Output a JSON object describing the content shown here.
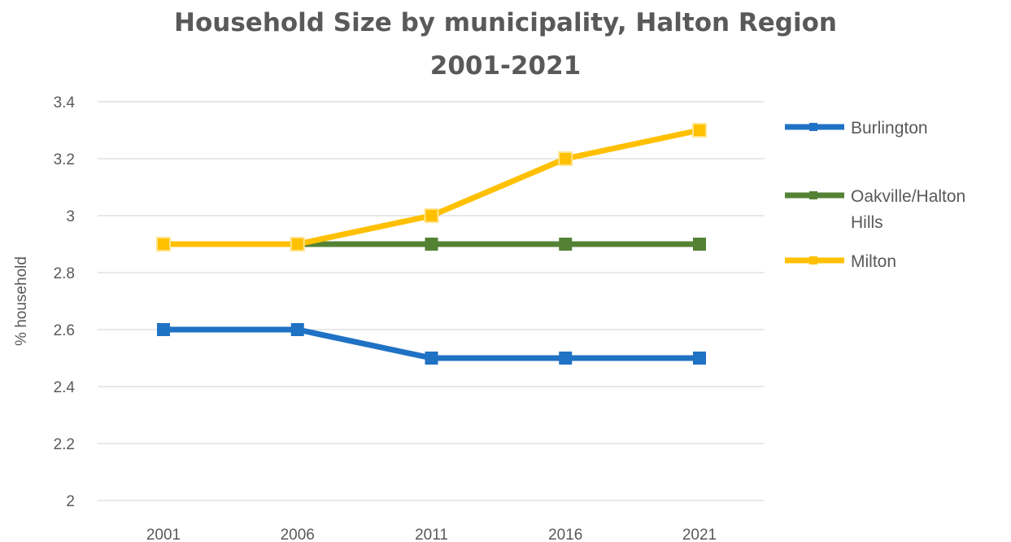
{
  "chart_data": {
    "type": "line",
    "title_lines": [
      "Household Size by municipality, Halton Region",
      "2001-2021"
    ],
    "xlabel": "",
    "ylabel": "% household",
    "categories": [
      "2001",
      "2006",
      "2011",
      "2016",
      "2021"
    ],
    "ylim": [
      2,
      3.4
    ],
    "yticks": [
      "2",
      "2.2",
      "2.4",
      "2.6",
      "2.8",
      "3",
      "3.2",
      "3.4"
    ],
    "grid": true,
    "legend_position": "right",
    "series": [
      {
        "name": "Burlington",
        "name_lines": [
          "Burlington"
        ],
        "color": "#1f72c4",
        "marker": "square",
        "values": [
          2.6,
          2.6,
          2.5,
          2.5,
          2.5
        ]
      },
      {
        "name": "Oakville/Halton Hills",
        "name_lines": [
          "Oakville/Halton",
          "Hills"
        ],
        "color": "#548235",
        "marker": "square",
        "values": [
          2.9,
          2.9,
          2.9,
          2.9,
          2.9
        ]
      },
      {
        "name": "Milton",
        "name_lines": [
          "Milton"
        ],
        "color": "#ffc000",
        "marker": "square",
        "values": [
          2.9,
          2.9,
          3.0,
          3.2,
          3.3
        ]
      }
    ]
  }
}
